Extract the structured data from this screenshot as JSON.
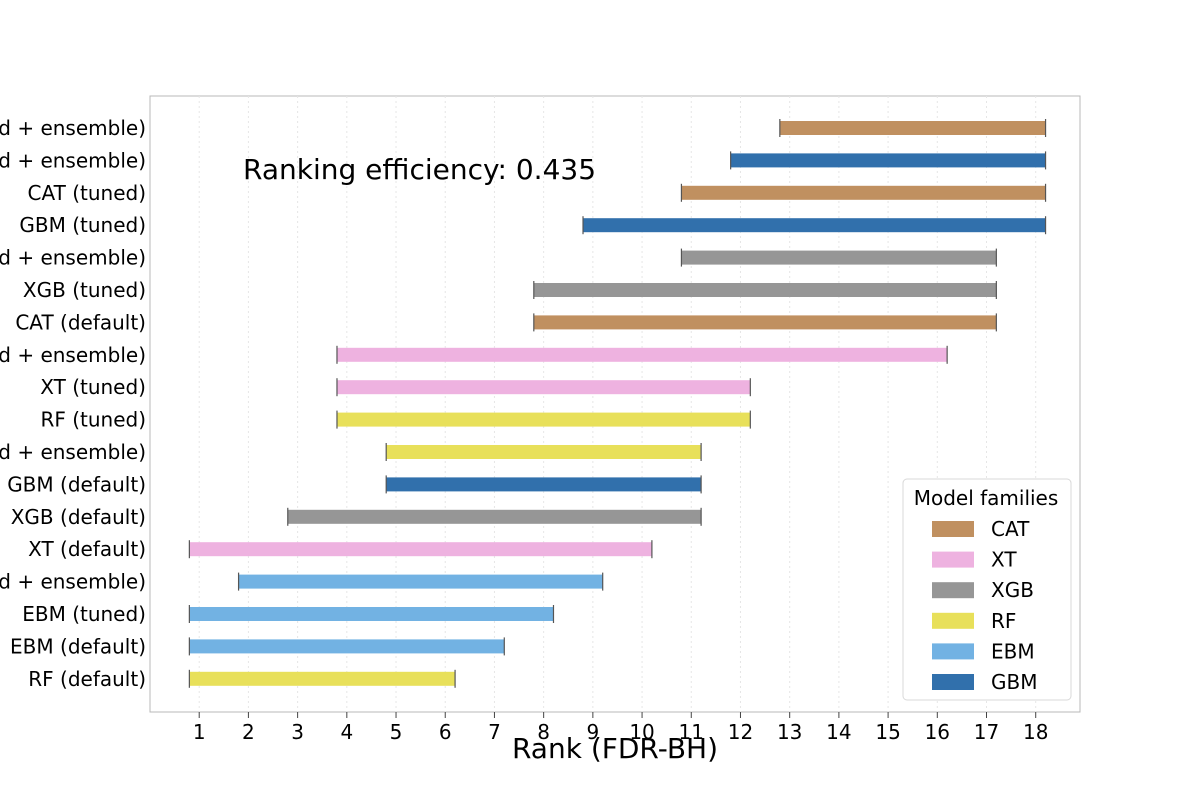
{
  "chart_data": {
    "type": "bar",
    "orientation": "horizontal-range",
    "xlabel": "Rank (FDR-BH)",
    "annotation": "Ranking efficiency: 0.435",
    "xticks": [
      1,
      2,
      3,
      4,
      5,
      6,
      7,
      8,
      9,
      10,
      11,
      12,
      13,
      14,
      15,
      16,
      17,
      18
    ],
    "xlim": [
      0,
      18.9
    ],
    "grid": "vertical",
    "legend": {
      "title": "Model families",
      "placement": "bottom-right",
      "entries": [
        {
          "name": "CAT",
          "color": "#c09060"
        },
        {
          "name": "XT",
          "color": "#eeb2e0"
        },
        {
          "name": "XGB",
          "color": "#969696"
        },
        {
          "name": "RF",
          "color": "#e8e05a"
        },
        {
          "name": "EBM",
          "color": "#72b2e3"
        },
        {
          "name": "GBM",
          "color": "#3170ac"
        }
      ]
    },
    "rows": [
      {
        "label": "d + ensemble)",
        "family": "CAT",
        "start": 12.8,
        "end": 18.2
      },
      {
        "label": "d + ensemble)",
        "family": "GBM",
        "start": 11.8,
        "end": 18.2
      },
      {
        "label": "CAT (tuned)",
        "family": "CAT",
        "start": 10.8,
        "end": 18.2
      },
      {
        "label": "GBM (tuned)",
        "family": "GBM",
        "start": 8.8,
        "end": 18.2
      },
      {
        "label": "d + ensemble)",
        "family": "XGB",
        "start": 10.8,
        "end": 17.2
      },
      {
        "label": "XGB (tuned)",
        "family": "XGB",
        "start": 7.8,
        "end": 17.2
      },
      {
        "label": "CAT (default)",
        "family": "CAT",
        "start": 7.8,
        "end": 17.2
      },
      {
        "label": "d + ensemble)",
        "family": "XT",
        "start": 3.8,
        "end": 16.2
      },
      {
        "label": "XT (tuned)",
        "family": "XT",
        "start": 3.8,
        "end": 12.2
      },
      {
        "label": "RF (tuned)",
        "family": "RF",
        "start": 3.8,
        "end": 12.2
      },
      {
        "label": "d + ensemble)",
        "family": "RF",
        "start": 4.8,
        "end": 11.2
      },
      {
        "label": "GBM (default)",
        "family": "GBM",
        "start": 4.8,
        "end": 11.2
      },
      {
        "label": "XGB (default)",
        "family": "XGB",
        "start": 2.8,
        "end": 11.2
      },
      {
        "label": "XT (default)",
        "family": "XT",
        "start": 0.8,
        "end": 10.2
      },
      {
        "label": "d + ensemble)",
        "family": "EBM",
        "start": 1.8,
        "end": 9.2
      },
      {
        "label": "EBM (tuned)",
        "family": "EBM",
        "start": 0.8,
        "end": 8.2
      },
      {
        "label": "EBM (default)",
        "family": "EBM",
        "start": 0.8,
        "end": 7.2
      },
      {
        "label": "RF (default)",
        "family": "RF",
        "start": 0.8,
        "end": 6.2
      }
    ]
  }
}
